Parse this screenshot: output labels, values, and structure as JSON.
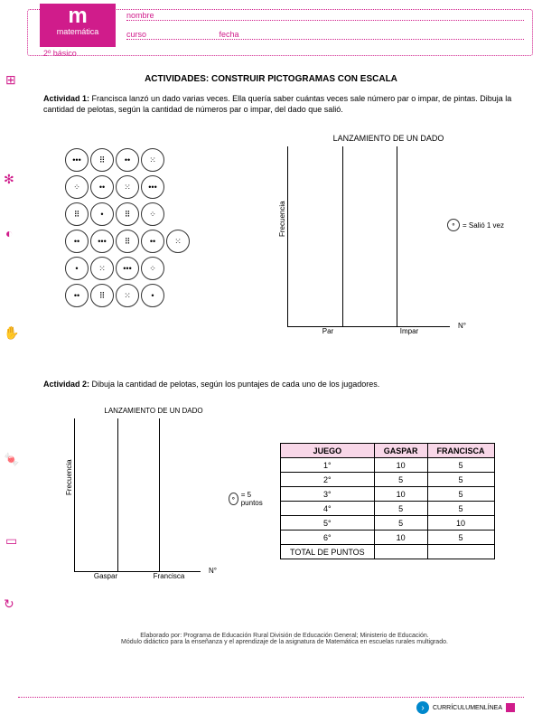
{
  "header": {
    "brand_letter": "m",
    "brand_word": "matemática",
    "grade": "2º básico",
    "nombre_label": "nombre",
    "curso_label": "curso",
    "fecha_label": "fecha"
  },
  "title": "ACTIVIDADES: CONSTRUIR PICTOGRAMAS CON ESCALA",
  "activity1": {
    "label": "Actividad 1:",
    "text": "Francisca lanzó un dado varias veces. Ella quería saber cuántas veces sale número par o impar, de pintas. Dibuja la cantidad de pelotas, según la cantidad de números par o impar, del dado que salió."
  },
  "dice_values": [
    [
      3,
      6,
      2,
      5
    ],
    [
      4,
      2,
      5,
      3
    ],
    [
      6,
      1,
      6,
      4
    ],
    [
      2,
      3,
      6,
      2,
      5
    ],
    [
      1,
      5,
      3,
      4
    ],
    [
      2,
      6,
      5,
      1
    ]
  ],
  "chart1": {
    "title": "LANZAMIENTO DE UN DADO",
    "ylabel": "Frecuencia",
    "x1": "Par",
    "x2": "Impar",
    "nlabel": "N°",
    "legend": "= Salió 1 vez"
  },
  "activity2": {
    "label": "Actividad 2:",
    "text": "Dibuja la cantidad de pelotas, según los puntajes de cada uno de los jugadores."
  },
  "chart2": {
    "title": "LANZAMIENTO DE UN DADO",
    "ylabel": "Frecuencia",
    "x1": "Gaspar",
    "x2": "Francisca",
    "nlabel": "N°",
    "legend": "= 5 puntos"
  },
  "table": {
    "h1": "JUEGO",
    "h2": "GASPAR",
    "h3": "FRANCISCA",
    "rows": [
      [
        "1°",
        "10",
        "5"
      ],
      [
        "2°",
        "5",
        "5"
      ],
      [
        "3°",
        "10",
        "5"
      ],
      [
        "4°",
        "5",
        "5"
      ],
      [
        "5°",
        "5",
        "10"
      ],
      [
        "6°",
        "10",
        "5"
      ]
    ],
    "total_label": "TOTAL DE PUNTOS"
  },
  "footer": {
    "line1": "Elaborado por: Programa de Educación Rural División de Educación General; Ministerio de Educación.",
    "line2": "Módulo didáctico para la enseñanza y el aprendizaje de la asignatura de Matemática en escuelas rurales multigrado.",
    "logo": "CURRÍCULUMENLÍNEA"
  },
  "colors": {
    "brand": "#d01c8b"
  }
}
